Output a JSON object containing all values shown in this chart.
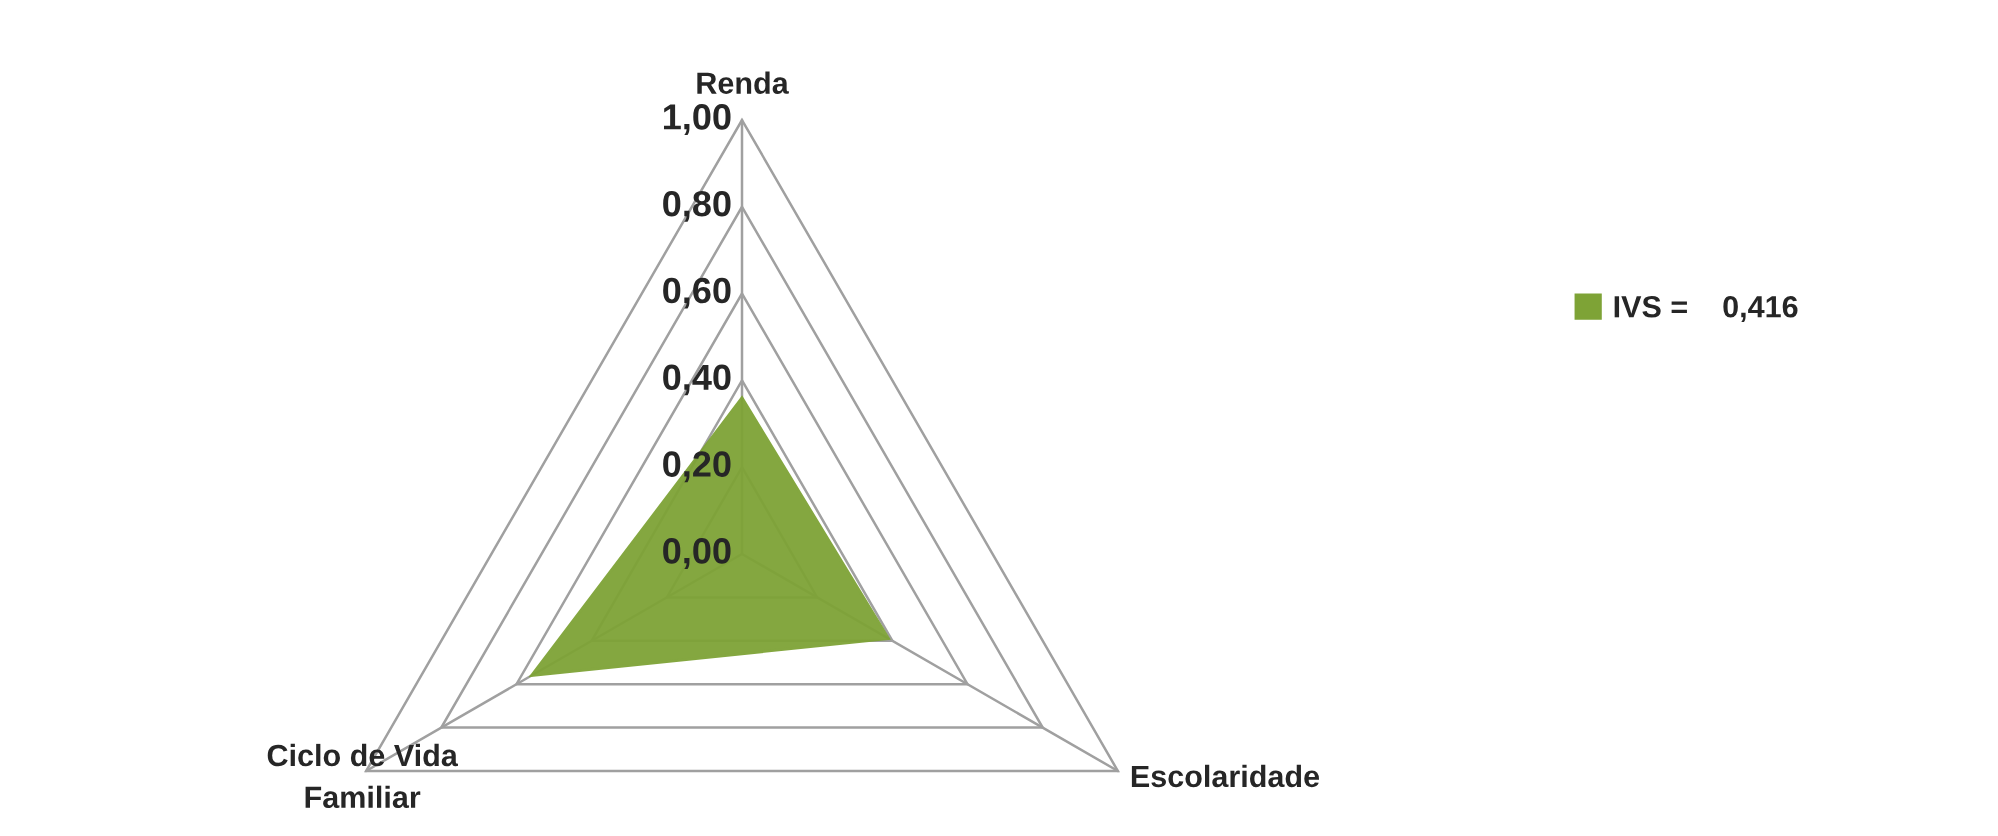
{
  "chart_data": {
    "type": "radar",
    "categories": [
      "Renda",
      "Escolaridade",
      "Ciclo de Vida\nFamiliar"
    ],
    "series": [
      {
        "name": "IVS =    0,416",
        "color": "#7ea336",
        "values": [
          0.36,
          0.39,
          0.56
        ]
      }
    ],
    "ylim": [
      0,
      1
    ],
    "yticks": [
      {
        "value": 0,
        "label": "0,00"
      },
      {
        "value": 0.2,
        "label": "0,20"
      },
      {
        "value": 0.4,
        "label": "0,40"
      },
      {
        "value": 0.6,
        "label": "0,60"
      },
      {
        "value": 0.8,
        "label": "0,80"
      },
      {
        "value": 1,
        "label": "1,00"
      }
    ],
    "legend": "right",
    "grid": true
  }
}
